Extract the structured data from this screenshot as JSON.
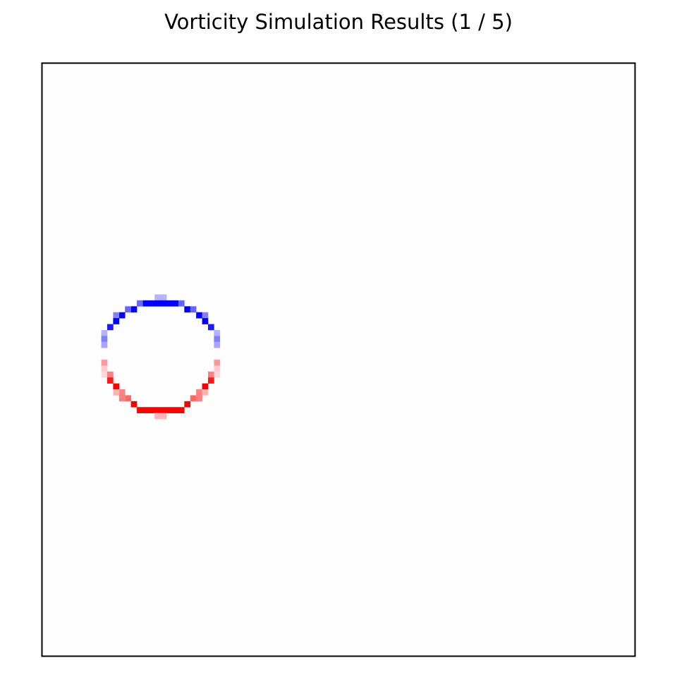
{
  "chart_data": {
    "type": "heatmap",
    "title": "Vorticity Simulation Results (1 / 5)",
    "colormap": "bwr",
    "colors": {
      "negative": "#0000ff",
      "zero": "#fefefe",
      "positive": "#ff0000",
      "frame": "#000000"
    },
    "grid_size": [
      100,
      100
    ],
    "x_ticks": [],
    "y_ticks": [],
    "value_range": [
      -1,
      1
    ],
    "cells": [
      [
        19,
        39,
        -0.3
      ],
      [
        20,
        39,
        -0.3
      ],
      [
        17,
        40,
        -1
      ],
      [
        18,
        40,
        -1
      ],
      [
        19,
        40,
        -1
      ],
      [
        20,
        40,
        -1
      ],
      [
        21,
        40,
        -1
      ],
      [
        22,
        40,
        -1
      ],
      [
        16,
        40,
        -0.6
      ],
      [
        23,
        40,
        -0.6
      ],
      [
        15,
        41,
        -1
      ],
      [
        24,
        41,
        -1
      ],
      [
        14,
        41,
        -0.6
      ],
      [
        25,
        41,
        -0.6
      ],
      [
        13,
        42,
        -1
      ],
      [
        26,
        42,
        -1
      ],
      [
        12,
        42,
        -0.5
      ],
      [
        27,
        42,
        -0.5
      ],
      [
        12,
        43,
        -1
      ],
      [
        27,
        43,
        -1
      ],
      [
        11,
        44,
        -0.9
      ],
      [
        28,
        44,
        -0.9
      ],
      [
        10,
        45,
        -0.3
      ],
      [
        29,
        45,
        -0.3
      ],
      [
        10,
        46,
        -0.5
      ],
      [
        29,
        46,
        -0.5
      ],
      [
        10,
        47,
        -0.35
      ],
      [
        29,
        47,
        -0.35
      ],
      [
        10,
        50,
        0.4
      ],
      [
        29,
        50,
        0.4
      ],
      [
        10,
        51,
        0.2
      ],
      [
        29,
        51,
        0.2
      ],
      [
        10,
        52,
        0.15
      ],
      [
        11,
        52,
        0.5
      ],
      [
        28,
        52,
        0.5
      ],
      [
        29,
        52,
        0.15
      ],
      [
        11,
        53,
        0.9
      ],
      [
        28,
        53,
        0.9
      ],
      [
        12,
        54,
        1
      ],
      [
        27,
        54,
        1
      ],
      [
        13,
        55,
        0.5
      ],
      [
        26,
        55,
        0.5
      ],
      [
        12,
        55,
        0.3
      ],
      [
        27,
        55,
        0.3
      ],
      [
        14,
        56,
        0.6
      ],
      [
        25,
        56,
        0.6
      ],
      [
        13,
        56,
        0.5
      ],
      [
        26,
        56,
        0.5
      ],
      [
        15,
        57,
        1
      ],
      [
        24,
        57,
        1
      ],
      [
        16,
        58,
        1
      ],
      [
        17,
        58,
        1
      ],
      [
        18,
        58,
        1
      ],
      [
        19,
        58,
        1
      ],
      [
        20,
        58,
        1
      ],
      [
        21,
        58,
        1
      ],
      [
        22,
        58,
        1
      ],
      [
        23,
        58,
        1
      ],
      [
        19,
        59,
        0.3
      ],
      [
        20,
        59,
        0.3
      ]
    ]
  }
}
